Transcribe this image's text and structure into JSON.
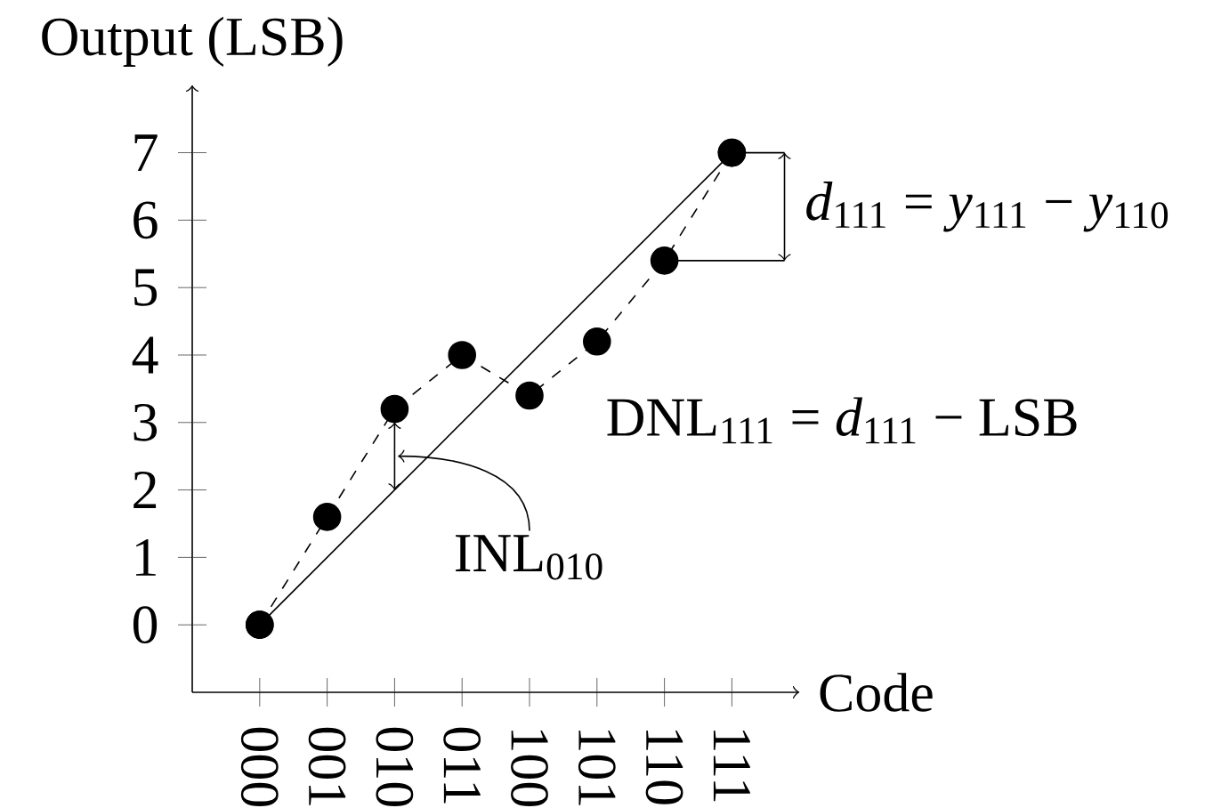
{
  "chart_data": {
    "type": "line",
    "xlabel": "Code",
    "ylabel": "Output (LSB)",
    "categories": [
      "000",
      "001",
      "010",
      "011",
      "100",
      "101",
      "110",
      "111"
    ],
    "series": [
      {
        "color": "#000000",
        "marker": "circle",
        "line_style": "dashed",
        "values": [
          0,
          1.6,
          3.2,
          4,
          3.4,
          4.2,
          5.4,
          7
        ]
      },
      {
        "color": "#000000",
        "marker": "circle",
        "line_style": "solid",
        "x": [
          "000",
          "111"
        ],
        "values": [
          0,
          7
        ]
      }
    ],
    "ylim": [
      -1,
      8
    ],
    "yticks": [
      0,
      1,
      2,
      3,
      4,
      5,
      6,
      7
    ],
    "annotations": [
      {
        "text": "*d*$_{111}$ = *y*$_{111}$ − *y*$_{110}$",
        "x": "110",
        "y": 5.4
      },
      "DNL$_{111}$ = *d*$_{111}$ − LSB",
      "INL$_{010}$"
    ]
  }
}
